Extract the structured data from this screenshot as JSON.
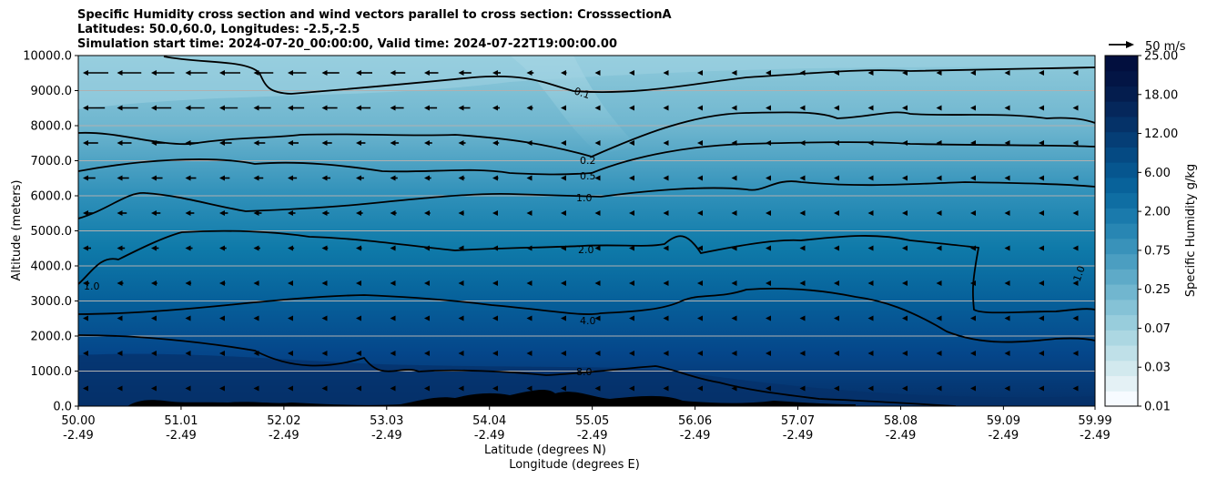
{
  "chart_data": {
    "type": "contour",
    "title_lines": [
      "Specific Humidity cross section and wind vectors parallel to cross section: CrosssectionA",
      "Latitudes: 50.0,60.0, Longitudes: -2.5,-2.5",
      "Simulation start time: 2024-07-20_00:00:00, Valid time: 2024-07-22T19:00:00.00"
    ],
    "ylabel": "Altitude (meters)",
    "xlabel_lines": [
      "Latitude (degrees N)",
      "Longitude (degrees E)"
    ],
    "ylim": [
      0,
      10000
    ],
    "xlim": [
      50.0,
      59.99
    ],
    "y_ticks": [
      0,
      1000,
      2000,
      3000,
      4000,
      5000,
      6000,
      7000,
      8000,
      9000,
      10000
    ],
    "y_tick_labels": [
      "0.0",
      "1000.0",
      "2000.0",
      "3000.0",
      "4000.0",
      "5000.0",
      "6000.0",
      "7000.0",
      "8000.0",
      "9000.0",
      "10000.0"
    ],
    "x_ticks": [
      50.0,
      51.01,
      52.02,
      53.03,
      54.04,
      55.05,
      56.06,
      57.07,
      58.08,
      59.09,
      59.99
    ],
    "x_tick_lat_labels": [
      "50.00",
      "51.01",
      "52.02",
      "53.03",
      "54.04",
      "55.05",
      "56.06",
      "57.07",
      "58.08",
      "59.09",
      "59.99"
    ],
    "x_tick_lon_labels": [
      "-2.49",
      "-2.49",
      "-2.49",
      "-2.49",
      "-2.49",
      "-2.49",
      "-2.49",
      "-2.49",
      "-2.49",
      "-2.49",
      "-2.49"
    ],
    "grid": "horizontal",
    "colorbar": {
      "label": "Specific Humidity g/kg",
      "tick_labels": [
        "0.01",
        "0.03",
        "0.07",
        "0.25",
        "0.75",
        "2.00",
        "6.00",
        "12.00",
        "18.00",
        "25.00"
      ],
      "colors": [
        "#f7fbff",
        "#e4f1f5",
        "#d2e9ee",
        "#bfe0e8",
        "#acd7e2",
        "#98cddc",
        "#85c2d6",
        "#71b6cf",
        "#5eaac8",
        "#4b9ec1",
        "#3992ba",
        "#2886b3",
        "#1a7aac",
        "#0f6ea3",
        "#08629a",
        "#06568f",
        "#054a83",
        "#053e76",
        "#053268",
        "#05275b",
        "#041d4e",
        "#031545",
        "#020f3e"
      ]
    },
    "contour_labels": [
      "0.1",
      "0.2",
      "0.5",
      "1.0",
      "2.0",
      "4.0",
      "8.0",
      "1.0",
      "1.0"
    ],
    "wind_reference": "50 m/s"
  }
}
